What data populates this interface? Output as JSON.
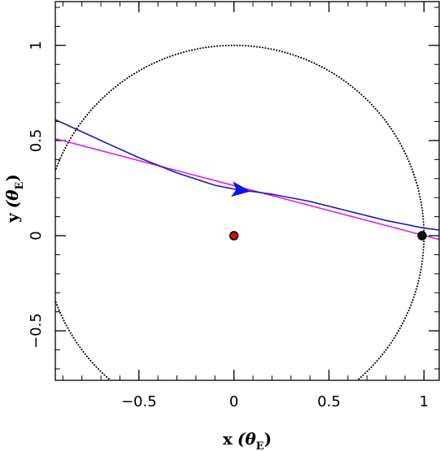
{
  "chart_data": {
    "type": "scatter",
    "title": "",
    "xlabel": {
      "main": "x",
      "theta": "(θ",
      "sub": "E",
      "close": ")"
    },
    "ylabel": {
      "main": "y",
      "theta": "(θ",
      "sub": "E",
      "close": ")"
    },
    "xlim": [
      -0.94,
      1.08
    ],
    "ylim": [
      -0.76,
      1.23
    ],
    "xticks_major": [
      -0.5,
      0,
      0.5,
      1
    ],
    "xtick_labels": [
      "−0.5",
      "0",
      "0.5",
      "1"
    ],
    "yticks_major": [
      -0.5,
      0,
      0.5,
      1
    ],
    "ytick_labels": [
      "−0.5",
      "0",
      "0.5",
      "1"
    ],
    "minor_step": 0.1,
    "grid": false,
    "series": [
      {
        "kind": "circle",
        "style": "dotted",
        "color": "#000000",
        "center": [
          0,
          0
        ],
        "radius": 1
      },
      {
        "kind": "line",
        "color": "#e020e0",
        "x": [
          -0.94,
          1.08
        ],
        "y": [
          0.51,
          -0.02
        ]
      },
      {
        "kind": "line",
        "color": "#1a1ab0",
        "x": [
          -0.94,
          -0.7,
          -0.5,
          -0.3,
          -0.1,
          0.0,
          0.05,
          0.1,
          0.2,
          0.4,
          0.6,
          0.8,
          1.0,
          1.08
        ],
        "y": [
          0.61,
          0.5,
          0.41,
          0.33,
          0.265,
          0.245,
          0.237,
          0.232,
          0.218,
          0.18,
          0.13,
          0.08,
          0.04,
          0.03
        ]
      },
      {
        "kind": "arrow",
        "color": "#1010f0",
        "x": 0.03,
        "y": 0.24,
        "direction": [
          1,
          -0.12
        ]
      },
      {
        "kind": "point",
        "color": "#d01010",
        "edge": "#000000",
        "x": 0,
        "y": 0
      },
      {
        "kind": "point",
        "color": "#101010",
        "edge": "#000000",
        "x": 0.99,
        "y": 0.0
      }
    ]
  }
}
